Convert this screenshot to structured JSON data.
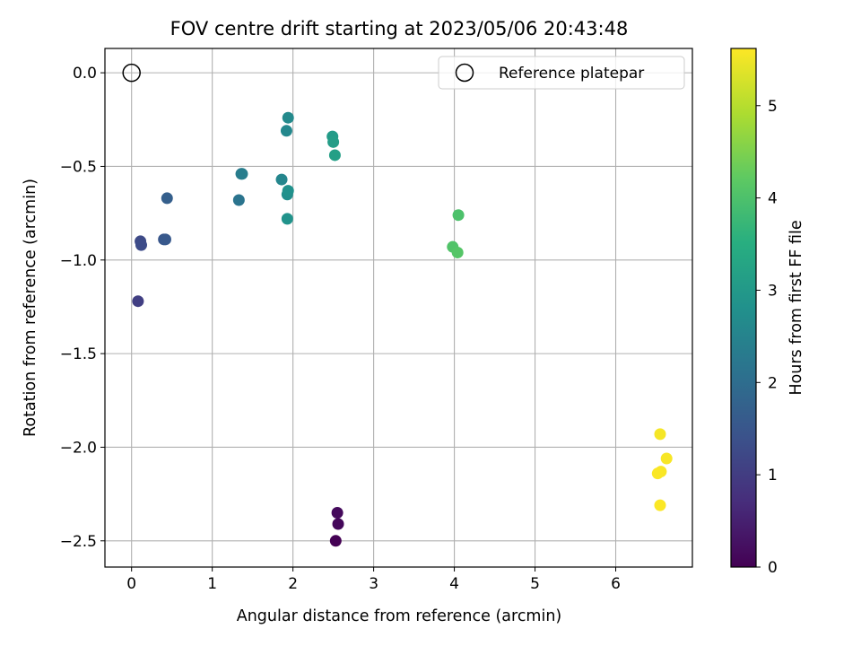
{
  "chart_data": {
    "type": "scatter",
    "title": "FOV centre drift starting at 2023/05/06 20:43:48",
    "xlabel": "Angular distance from reference (arcmin)",
    "ylabel": "Rotation from reference (arcmin)",
    "xlim": [
      -0.33,
      6.95
    ],
    "ylim": [
      -2.64,
      0.13
    ],
    "xticks": [
      0,
      1,
      2,
      3,
      4,
      5,
      6
    ],
    "yticks": [
      0.0,
      -0.5,
      -1.0,
      -1.5,
      -2.0,
      -2.5
    ],
    "ytick_labels": [
      "0.0",
      "−0.5",
      "−1.0",
      "−1.5",
      "−2.0",
      "−2.5"
    ],
    "grid": true,
    "colorbar": {
      "label": "Hours from first FF file",
      "colormap": "viridis",
      "range": [
        0,
        5.62
      ],
      "ticks": [
        0,
        1,
        2,
        3,
        4,
        5
      ]
    },
    "legend": {
      "placement": "top-right",
      "entries": [
        "Reference platepar"
      ]
    },
    "reference": {
      "x": 0.0,
      "y": 0.0
    },
    "points": [
      {
        "x": 2.53,
        "y": -2.5,
        "hours": 0.0
      },
      {
        "x": 2.56,
        "y": -2.41,
        "hours": 0.1
      },
      {
        "x": 2.55,
        "y": -2.35,
        "hours": 0.15
      },
      {
        "x": 0.08,
        "y": -1.22,
        "hours": 1.05
      },
      {
        "x": 0.11,
        "y": -0.9,
        "hours": 1.25
      },
      {
        "x": 0.12,
        "y": -0.92,
        "hours": 1.3
      },
      {
        "x": 0.4,
        "y": -0.89,
        "hours": 1.5
      },
      {
        "x": 0.42,
        "y": -0.89,
        "hours": 1.55
      },
      {
        "x": 0.44,
        "y": -0.67,
        "hours": 1.7
      },
      {
        "x": 1.33,
        "y": -0.68,
        "hours": 2.15
      },
      {
        "x": 1.36,
        "y": -0.54,
        "hours": 2.3
      },
      {
        "x": 1.37,
        "y": -0.54,
        "hours": 2.35
      },
      {
        "x": 1.86,
        "y": -0.57,
        "hours": 2.55
      },
      {
        "x": 1.92,
        "y": -0.31,
        "hours": 2.6
      },
      {
        "x": 1.94,
        "y": -0.24,
        "hours": 2.65
      },
      {
        "x": 1.93,
        "y": -0.65,
        "hours": 2.75
      },
      {
        "x": 1.94,
        "y": -0.63,
        "hours": 2.8
      },
      {
        "x": 1.93,
        "y": -0.78,
        "hours": 2.85
      },
      {
        "x": 2.49,
        "y": -0.34,
        "hours": 3.05
      },
      {
        "x": 2.5,
        "y": -0.37,
        "hours": 3.1
      },
      {
        "x": 2.52,
        "y": -0.44,
        "hours": 3.15
      },
      {
        "x": 4.05,
        "y": -0.76,
        "hours": 4.0
      },
      {
        "x": 3.98,
        "y": -0.93,
        "hours": 4.05
      },
      {
        "x": 4.04,
        "y": -0.96,
        "hours": 4.1
      },
      {
        "x": 6.55,
        "y": -1.93,
        "hours": 5.55
      },
      {
        "x": 6.63,
        "y": -2.06,
        "hours": 5.57
      },
      {
        "x": 6.56,
        "y": -2.13,
        "hours": 5.58
      },
      {
        "x": 6.52,
        "y": -2.14,
        "hours": 5.59
      },
      {
        "x": 6.55,
        "y": -2.31,
        "hours": 5.6
      }
    ]
  }
}
